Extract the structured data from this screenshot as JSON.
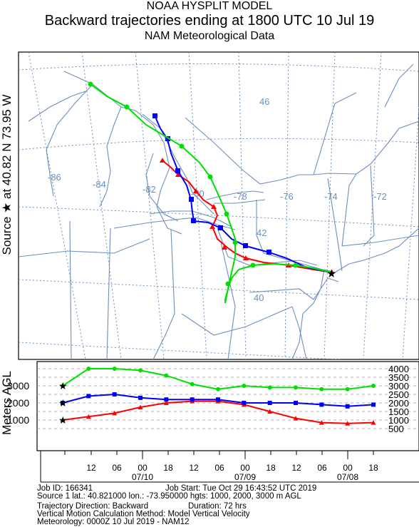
{
  "header": {
    "line1": "NOAA HYSPLIT MODEL",
    "line2": "Backward trajectories ending at 1800 UTC 10 Jul 19",
    "line3": "NAM  Meteorological Data"
  },
  "side_label": "Source ★ at    40.82 N   73.95 W",
  "map": {
    "lon_labels": [
      "-86",
      "-84",
      "-82",
      "-80",
      "-78",
      "-76",
      "-74",
      "-72"
    ],
    "lat_labels": [
      "46",
      "42",
      "40"
    ]
  },
  "height_panel": {
    "ylabel": "Meters AGL",
    "left_ticks": [
      "3000",
      "2000",
      "1000"
    ],
    "right_ticks": [
      "4000",
      "3500",
      "3000",
      "2500",
      "2000",
      "1500",
      "1000",
      "500"
    ],
    "hour_labels": [
      "12",
      "06",
      "00",
      "18",
      "12",
      "06",
      "00",
      "18",
      "12",
      "06",
      "00",
      "18"
    ],
    "date_labels": [
      "07/10",
      "07/09",
      "07/08"
    ]
  },
  "footer": {
    "job_id": "Job ID: 166341",
    "job_start": "Job Start: Tue Oct 29 16:43:52 UTC 2019",
    "source_line": "Source 1 lat.: 40.821000  lon.: -73.950000  hgts: 1000, 2000, 3000 m AGL",
    "direction": "Trajectory Direction: Backward",
    "duration": "Duration: 72 hrs",
    "vertical": "Vertical Motion Calculation Method:       Model Vertical Velocity",
    "meteorology": "Meteorology: 0000Z 10 Jul 2019 - NAM12"
  },
  "colors": {
    "red": "#ff0000",
    "blue": "#0000ff",
    "green": "#00e000",
    "map_lines": "#6b8fbf",
    "grid": "#6b8fbf"
  },
  "chart_data": {
    "type": "line",
    "x": [
      0,
      6,
      12,
      18,
      24,
      30,
      36,
      42,
      48,
      54,
      60,
      66,
      72
    ],
    "series": [
      {
        "values": [
          1000,
          1200,
          1400,
          1750,
          2000,
          2100,
          2100,
          1900,
          1500,
          1100,
          850,
          800,
          850
        ]
      },
      {
        "values": [
          2000,
          2400,
          2500,
          2300,
          2200,
          2200,
          2200,
          2000,
          2000,
          2000,
          1900,
          1800,
          1900
        ]
      },
      {
        "values": [
          3000,
          4000,
          4000,
          3900,
          3600,
          3100,
          2800,
          3000,
          2900,
          2900,
          2800,
          2800,
          3000
        ]
      }
    ],
    "xlim": [
      72,
      0
    ],
    "ylim": [
      0,
      4200
    ]
  }
}
